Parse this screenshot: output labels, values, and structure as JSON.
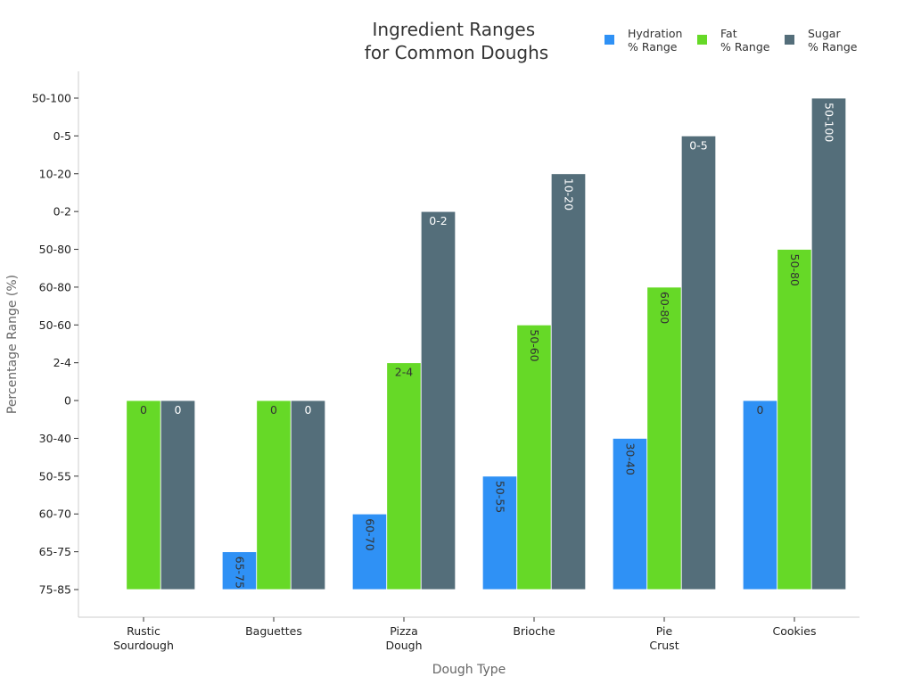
{
  "chart_data": {
    "type": "bar",
    "title": "Ingredient Ranges\nfor Common Doughs",
    "xlabel": "Dough Type",
    "ylabel": "Percentage Range (%)",
    "categories": [
      "Rustic\nSourdough",
      "Baguettes",
      "Pizza\nDough",
      "Brioche",
      "Pie\nCrust",
      "Cookies"
    ],
    "y_categories": [
      "75-85",
      "65-75",
      "60-70",
      "50-55",
      "30-40",
      "0",
      "2-4",
      "50-60",
      "60-80",
      "50-80",
      "0-2",
      "10-20",
      "0-5",
      "50-100"
    ],
    "legend_position": "top-right",
    "grid": false,
    "series": [
      {
        "name": "Hydration\n% Range",
        "color": "#2f91f5",
        "values": [
          null,
          "65-75",
          "60-70",
          "50-55",
          "30-40",
          "0"
        ],
        "labels": [
          "",
          "65-75",
          "60-70",
          "50-55",
          "30-40",
          "0"
        ],
        "label_color": "#333333"
      },
      {
        "name": "Fat\n% Range",
        "color": "#66d927",
        "values": [
          "0",
          "0",
          "2-4",
          "50-60",
          "60-80",
          "50-80"
        ],
        "labels": [
          "0",
          "0",
          "2-4",
          "50-60",
          "60-80",
          "50-80"
        ],
        "label_color": "#333333"
      },
      {
        "name": "Sugar\n% Range",
        "color": "#546e7a",
        "values": [
          "0",
          "0",
          "0-2",
          "10-20",
          "0-5",
          "50-100"
        ],
        "labels": [
          "0",
          "0",
          "0-2",
          "10-20",
          "0-5",
          "50-100"
        ],
        "label_color": "#ffffff"
      }
    ]
  }
}
